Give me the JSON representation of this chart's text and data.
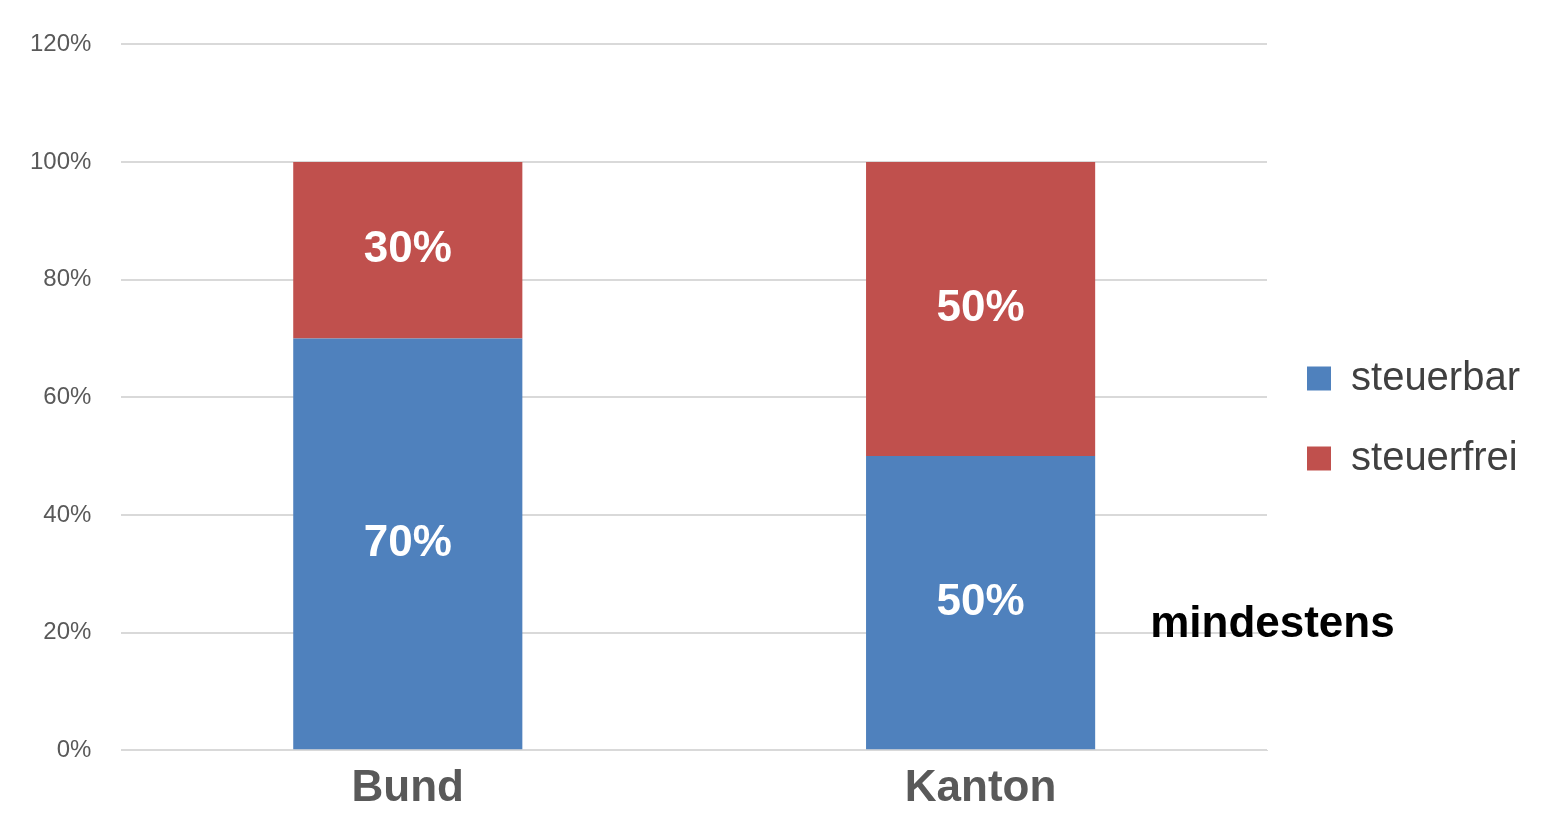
{
  "chart_data": {
    "type": "bar",
    "stacked": true,
    "categories": [
      "Bund",
      "Kanton"
    ],
    "series": [
      {
        "name": "steuerbar",
        "color": "#4f81bd",
        "values": [
          70,
          50
        ],
        "value_labels": [
          "70%",
          "50%"
        ]
      },
      {
        "name": "steuerfrei",
        "color": "#c0504d",
        "values": [
          30,
          50
        ],
        "value_labels": [
          "30%",
          "50%"
        ]
      }
    ],
    "ylim": [
      0,
      120
    ],
    "yticks": [
      {
        "value": 0,
        "label": "0%"
      },
      {
        "value": 20,
        "label": "20%"
      },
      {
        "value": 40,
        "label": "40%"
      },
      {
        "value": 60,
        "label": "60%"
      },
      {
        "value": 80,
        "label": "80%"
      },
      {
        "value": 100,
        "label": "100%"
      },
      {
        "value": 120,
        "label": "120%"
      }
    ],
    "grid": "y",
    "legend": "right",
    "annotations": [
      "mindestens"
    ]
  }
}
